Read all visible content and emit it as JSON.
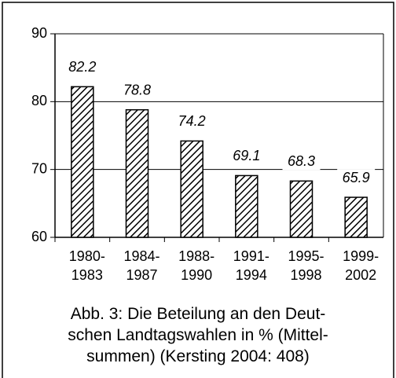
{
  "chart_data": {
    "type": "bar",
    "categories": [
      "1980-\n1983",
      "1984-\n1987",
      "1988-\n1990",
      "1991-\n1994",
      "1995-\n1998",
      "1999-\n2002"
    ],
    "values": [
      82.2,
      78.8,
      74.2,
      69.1,
      68.3,
      65.9
    ],
    "color": "#000000",
    "ylim": [
      60,
      90
    ],
    "yticks": [
      60,
      70,
      80,
      90
    ],
    "grid": true,
    "caption": "Abb. 3: Die Beteilung an den Deut-\nschen Landtagswahlen in % (Mittel-\nsummen) (Kersting 2004: 408)"
  }
}
